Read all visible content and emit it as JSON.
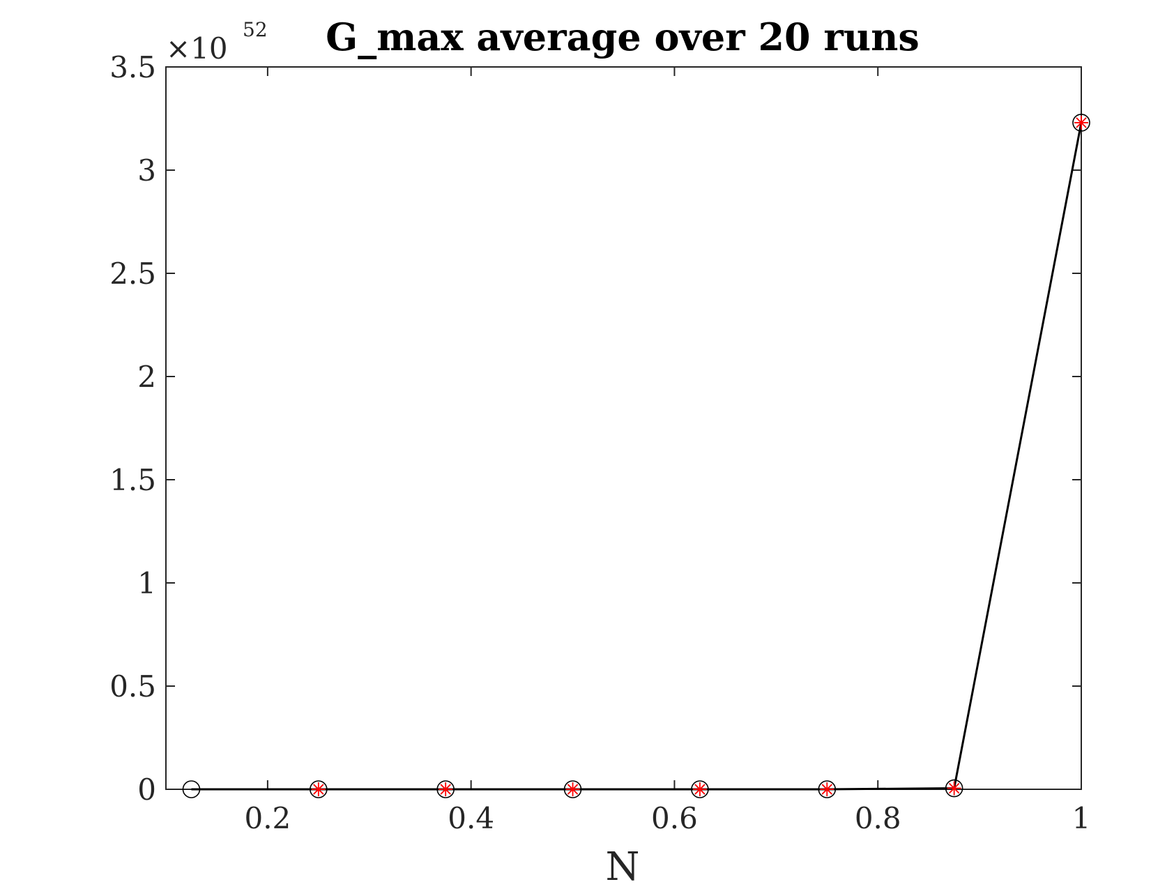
{
  "chart_data": {
    "type": "line",
    "title": "G_max average over 20 runs",
    "xlabel": "N",
    "ylabel": "",
    "y_multiplier": {
      "prefix": "×10",
      "exponent": "52"
    },
    "xlim": [
      0.1,
      1
    ],
    "ylim": [
      0,
      3.5
    ],
    "x_ticks": [
      {
        "value": 0.2,
        "label": "0.2"
      },
      {
        "value": 0.4,
        "label": "0.4"
      },
      {
        "value": 0.6,
        "label": "0.6"
      },
      {
        "value": 0.8,
        "label": "0.8"
      },
      {
        "value": 1,
        "label": "1"
      }
    ],
    "y_ticks": [
      {
        "value": 0,
        "label": "0"
      },
      {
        "value": 0.5,
        "label": "0.5"
      },
      {
        "value": 1,
        "label": "1"
      },
      {
        "value": 1.5,
        "label": "1.5"
      },
      {
        "value": 2,
        "label": "2"
      },
      {
        "value": 2.5,
        "label": "2.5"
      },
      {
        "value": 3,
        "label": "3"
      },
      {
        "value": 3.5,
        "label": "3.5"
      }
    ],
    "grid": false,
    "series": [
      {
        "x": [
          0.125,
          0.25,
          0.375,
          0.5,
          0.625,
          0.75,
          0.875,
          1.0
        ],
        "y": [
          0,
          0,
          0,
          0,
          0,
          0,
          0.005,
          3.23
        ],
        "line_color": "#000000",
        "marker": "circle",
        "marker_color": "#000000"
      },
      {
        "x": [
          0.25,
          0.375,
          0.5,
          0.625,
          0.75,
          0.875,
          1.0
        ],
        "y": [
          0,
          0,
          0,
          0,
          0,
          0.005,
          3.23
        ],
        "line_color": "none",
        "marker": "asterisk",
        "marker_color": "#ff0000"
      }
    ],
    "axis_color": "#262626"
  }
}
